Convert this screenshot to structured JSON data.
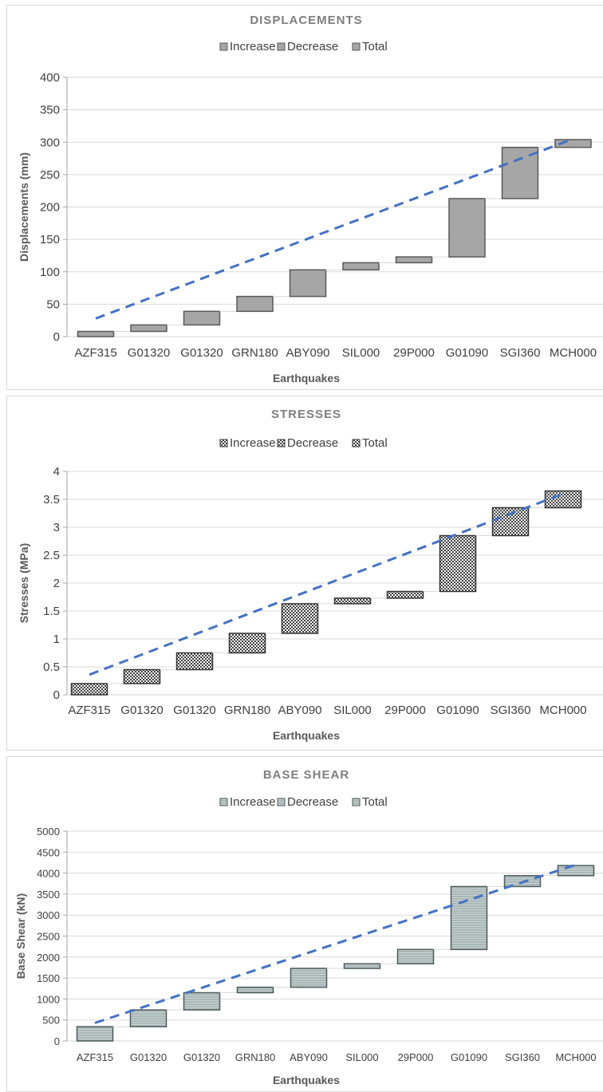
{
  "charts": [
    {
      "chart_data": {
        "type": "waterfall",
        "title": "DISPLACEMENTS",
        "xlabel": "Earthquakes",
        "ylabel": "Displacements (mm)",
        "ylim": [
          0,
          400
        ],
        "yticks": [
          0,
          50,
          100,
          150,
          200,
          250,
          300,
          350,
          400
        ],
        "grid": true,
        "legend_placement": "top-center",
        "legend": [
          "Increase",
          "Decrease",
          "Total"
        ],
        "categories": [
          "AZF315",
          "G01320",
          "G01320",
          "GRN180",
          "ABY090",
          "SIL000",
          "29P000",
          "G01090",
          "SGI360",
          "MCH000"
        ],
        "series": [
          {
            "name": "Increase",
            "values": [
              8,
              10,
              21,
              23,
              41,
              11,
              9,
              90,
              79,
              12
            ]
          }
        ],
        "cumulative": [
          8,
          18,
          39,
          62,
          103,
          114,
          123,
          213,
          292,
          304
        ],
        "trendline": {
          "style": "dashed",
          "color": "#4472c4",
          "from": [
            1,
            28
          ],
          "to": [
            10,
            305
          ]
        },
        "bar_fill": "#a6a6a6",
        "bar_stroke": "#595959",
        "pattern": "solid"
      }
    },
    {
      "chart_data": {
        "type": "waterfall",
        "title": "STRESSES",
        "xlabel": "Earthquakes",
        "ylabel": "Stresses (MPa)",
        "ylim": [
          0,
          4
        ],
        "yticks": [
          0,
          0.5,
          1,
          1.5,
          2,
          2.5,
          3,
          3.5,
          4
        ],
        "grid": true,
        "legend_placement": "top-center",
        "legend": [
          "Increase",
          "Decrease",
          "Total"
        ],
        "categories": [
          "AZF315",
          "G01320",
          "G01320",
          "GRN180",
          "ABY090",
          "SIL000",
          "29P000",
          "G01090",
          "SGI360",
          "MCH000"
        ],
        "series": [
          {
            "name": "Increase",
            "values": [
              0.2,
              0.25,
              0.3,
              0.35,
              0.53,
              0.1,
              0.12,
              1.0,
              0.5,
              0.3
            ]
          }
        ],
        "cumulative": [
          0.2,
          0.45,
          0.75,
          1.1,
          1.63,
          1.73,
          1.85,
          2.85,
          3.35,
          3.65
        ],
        "trendline": {
          "style": "dashed",
          "color": "#4472c4",
          "from": [
            1,
            0.36
          ],
          "to": [
            10,
            3.6
          ]
        },
        "bar_fill": "#404040",
        "bar_stroke": "#333333",
        "pattern": "checker"
      }
    },
    {
      "chart_data": {
        "type": "waterfall",
        "title": "BASE SHEAR",
        "xlabel": "Earthquakes",
        "ylabel": "Base Shear (kN)",
        "ylim": [
          0,
          5000
        ],
        "yticks": [
          0,
          500,
          1000,
          1500,
          2000,
          2500,
          3000,
          3500,
          4000,
          4500,
          5000
        ],
        "grid": true,
        "legend_placement": "top-center",
        "legend": [
          "Increase",
          "Decrease",
          "Total"
        ],
        "categories": [
          "AZF315",
          "G01320",
          "G01320",
          "GRN180",
          "ABY090",
          "SIL000",
          "29P000",
          "G01090",
          "SGI360",
          "MCH000"
        ],
        "series": [
          {
            "name": "Increase",
            "values": [
              340,
              400,
              410,
              130,
              450,
              110,
              340,
              1500,
              260,
              240
            ]
          }
        ],
        "cumulative": [
          340,
          740,
          1150,
          1280,
          1730,
          1840,
          2180,
          3680,
          3940,
          4180
        ],
        "trendline": {
          "style": "dashed",
          "color": "#4472c4",
          "from": [
            1,
            430
          ],
          "to": [
            10,
            4200
          ]
        },
        "bar_fill": "#aab7b7",
        "bar_stroke": "#4a5a5a",
        "pattern": "stripes"
      }
    }
  ]
}
